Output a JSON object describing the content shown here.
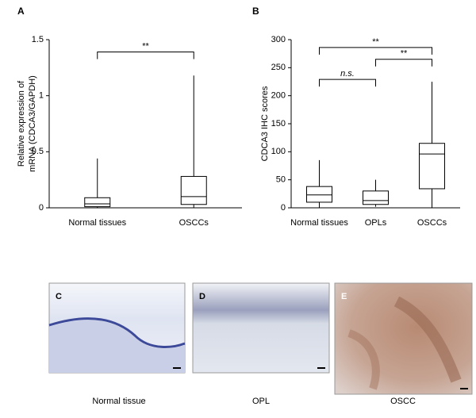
{
  "chart_data": [
    {
      "type": "box",
      "panel_label": "A",
      "ylabel_lines": [
        "Relative expression of",
        "mRNA (CDCA3/GAPDH)"
      ],
      "categories": [
        "Normal tissues",
        "OSCCs"
      ],
      "min": [
        0,
        0
      ],
      "q1": [
        0.01,
        0.03
      ],
      "median": [
        0.035,
        0.1
      ],
      "q3": [
        0.09,
        0.28
      ],
      "max": [
        0.44,
        1.18
      ],
      "ylim": [
        0,
        1.5
      ],
      "yticks": [
        0,
        0.5,
        1,
        1.5
      ],
      "annotations": [
        {
          "between": [
            "Normal tissues",
            "OSCCs"
          ],
          "y": 1.39,
          "label": "**"
        }
      ]
    },
    {
      "type": "box",
      "panel_label": "B",
      "ylabel_lines": [
        "CDCA3 IHC scores"
      ],
      "categories": [
        "Normal tissues",
        "OPLs",
        "OSCCs"
      ],
      "min": [
        0,
        2,
        0
      ],
      "q1": [
        10,
        6,
        34
      ],
      "median": [
        23,
        13,
        96
      ],
      "q3": [
        38,
        30,
        115
      ],
      "max": [
        85,
        50,
        225
      ],
      "ylim": [
        0,
        300
      ],
      "yticks": [
        0,
        50,
        100,
        150,
        200,
        250,
        300
      ],
      "annotations": [
        {
          "between": [
            "Normal tissues",
            "OSCCs"
          ],
          "y": 286,
          "label": "**"
        },
        {
          "between": [
            "OPLs",
            "OSCCs"
          ],
          "y": 265,
          "label": "**"
        },
        {
          "between": [
            "Normal tissues",
            "OPLs"
          ],
          "y": 229,
          "label": "n.s."
        }
      ]
    }
  ],
  "images": [
    {
      "label": "C",
      "caption": "Normal tissue"
    },
    {
      "label": "D",
      "caption": "OPL"
    },
    {
      "label": "E",
      "caption": "OSCC"
    }
  ]
}
